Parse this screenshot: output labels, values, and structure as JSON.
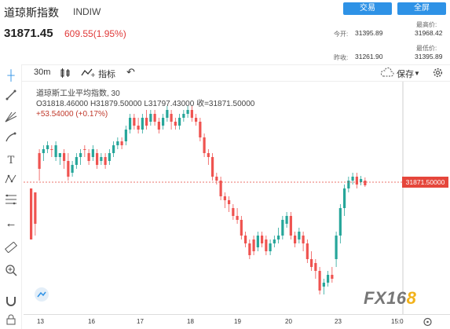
{
  "header": {
    "name": "道琼斯指数",
    "symbol": "INDIW",
    "trade_btn": "交易",
    "fullscreen_btn": "全屏",
    "price": "31871.45",
    "change": "609.55(1.95%)",
    "stats": {
      "open_label": "今开:",
      "open": "31395.89",
      "high_label": "最高价:",
      "high": "31968.42",
      "prev_label": "昨收:",
      "prev": "31261.90",
      "low_label": "最低价:",
      "low": "31395.89"
    }
  },
  "toolbar": {
    "interval": "30m",
    "indicator_label": "指标",
    "save_label": "保存",
    "undo": "↶"
  },
  "legend": {
    "line1": "道琼斯工业平均指数, 30",
    "line2": "O31818.46000  H31879.50000  L31797.43000  收=31871.50000",
    "line3": "+53.54000 (+0.17%)"
  },
  "price_tag": "31871.50000",
  "time_axis": [
    "13",
    "16",
    "17",
    "18",
    "19",
    "20",
    "23",
    "15:0"
  ],
  "logo": {
    "main": "FX16",
    "accent": "8"
  },
  "chart_data": {
    "type": "candlestick",
    "interval": "30m",
    "current_price": 31871.5,
    "candles": [
      [
        240,
        305,
        300,
        245
      ],
      [
        245,
        285,
        300,
        250
      ],
      [
        195,
        215,
        230,
        190
      ],
      [
        195,
        190,
        205,
        185
      ],
      [
        190,
        185,
        195,
        180
      ],
      [
        190,
        190,
        200,
        185
      ],
      [
        200,
        185,
        205,
        180
      ],
      [
        200,
        195,
        210,
        195
      ],
      [
        195,
        205,
        215,
        190
      ],
      [
        205,
        225,
        230,
        195
      ],
      [
        220,
        210,
        225,
        205
      ],
      [
        210,
        200,
        215,
        195
      ],
      [
        200,
        195,
        210,
        190
      ],
      [
        190,
        190,
        200,
        185
      ],
      [
        195,
        205,
        210,
        190
      ],
      [
        200,
        190,
        205,
        185
      ],
      [
        195,
        210,
        215,
        190
      ],
      [
        205,
        200,
        210,
        195
      ],
      [
        200,
        210,
        215,
        195
      ],
      [
        205,
        195,
        210,
        190
      ],
      [
        195,
        185,
        200,
        180
      ],
      [
        185,
        180,
        190,
        175
      ],
      [
        180,
        185,
        190,
        175
      ],
      [
        180,
        165,
        185,
        160
      ],
      [
        165,
        150,
        170,
        145
      ],
      [
        150,
        160,
        165,
        145
      ],
      [
        160,
        165,
        170,
        150
      ],
      [
        165,
        150,
        170,
        145
      ],
      [
        150,
        160,
        165,
        140
      ],
      [
        155,
        145,
        160,
        140
      ],
      [
        145,
        155,
        160,
        140
      ],
      [
        155,
        165,
        170,
        150
      ],
      [
        160,
        150,
        165,
        145
      ],
      [
        150,
        140,
        155,
        135
      ],
      [
        145,
        155,
        165,
        140
      ],
      [
        155,
        160,
        165,
        150
      ],
      [
        160,
        150,
        165,
        145
      ],
      [
        150,
        145,
        155,
        140
      ],
      [
        145,
        140,
        150,
        135
      ],
      [
        140,
        150,
        155,
        135
      ],
      [
        150,
        155,
        160,
        145
      ],
      [
        155,
        175,
        180,
        150
      ],
      [
        175,
        195,
        200,
        170
      ],
      [
        195,
        200,
        210,
        190
      ],
      [
        200,
        225,
        230,
        195
      ],
      [
        225,
        230,
        235,
        220
      ],
      [
        230,
        250,
        255,
        225
      ],
      [
        250,
        255,
        265,
        245
      ],
      [
        255,
        260,
        270,
        250
      ],
      [
        265,
        275,
        280,
        260
      ],
      [
        275,
        280,
        285,
        265
      ],
      [
        280,
        300,
        305,
        275
      ],
      [
        300,
        310,
        315,
        295
      ],
      [
        310,
        325,
        330,
        305
      ],
      [
        305,
        320,
        325,
        300
      ],
      [
        315,
        300,
        320,
        295
      ],
      [
        300,
        310,
        315,
        295
      ],
      [
        305,
        320,
        325,
        300
      ],
      [
        320,
        310,
        325,
        305
      ],
      [
        310,
        305,
        315,
        300
      ],
      [
        305,
        300,
        310,
        290
      ],
      [
        300,
        280,
        305,
        275
      ],
      [
        285,
        275,
        290,
        270
      ],
      [
        275,
        300,
        305,
        270
      ],
      [
        300,
        310,
        315,
        295
      ],
      [
        305,
        295,
        310,
        290
      ],
      [
        300,
        310,
        320,
        295
      ],
      [
        310,
        330,
        335,
        305
      ],
      [
        330,
        340,
        345,
        320
      ],
      [
        335,
        345,
        355,
        330
      ],
      [
        345,
        370,
        375,
        340
      ],
      [
        365,
        360,
        375,
        355
      ],
      [
        360,
        350,
        365,
        345
      ],
      [
        350,
        355,
        360,
        340
      ],
      [
        330,
        300,
        340,
        295
      ],
      [
        300,
        265,
        310,
        260
      ],
      [
        265,
        240,
        275,
        235
      ],
      [
        240,
        230,
        245,
        225
      ],
      [
        230,
        225,
        235,
        220
      ],
      [
        225,
        235,
        240,
        220
      ],
      [
        232,
        228,
        236,
        224
      ],
      [
        230,
        236,
        238,
        226
      ]
    ]
  }
}
